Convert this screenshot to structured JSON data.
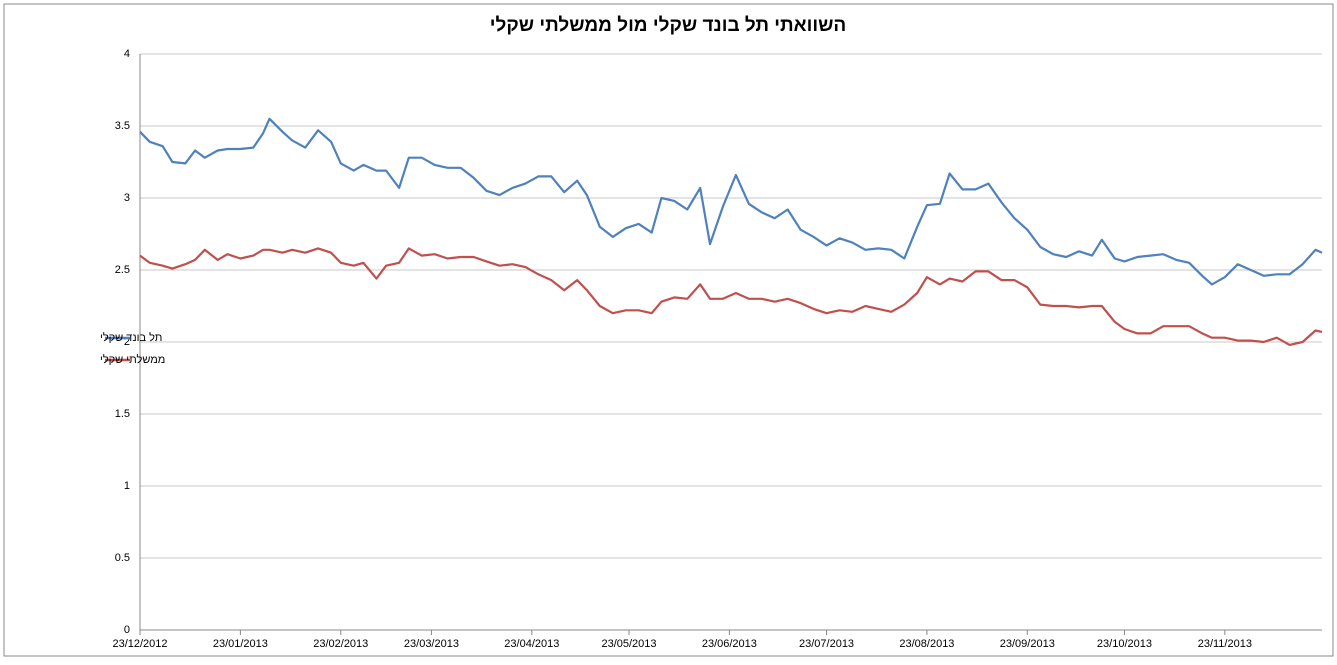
{
  "chart_data": {
    "type": "line",
    "title": "השוואתי תל בונד שקלי מול ממשלתי שקלי",
    "x": [
      "23/12/2012",
      "26/12/2012",
      "30/12/2012",
      "02/01/2013",
      "06/01/2013",
      "09/01/2013",
      "12/01/2013",
      "16/01/2013",
      "19/01/2013",
      "23/01/2013",
      "27/01/2013",
      "30/01/2013",
      "01/02/2013",
      "05/02/2013",
      "08/02/2013",
      "12/02/2013",
      "16/02/2013",
      "20/02/2013",
      "23/02/2013",
      "27/02/2013",
      "02/03/2013",
      "06/03/2013",
      "09/03/2013",
      "13/03/2013",
      "16/03/2013",
      "20/03/2013",
      "24/03/2013",
      "28/03/2013",
      "01/04/2013",
      "05/04/2013",
      "09/04/2013",
      "13/04/2013",
      "17/04/2013",
      "21/04/2013",
      "25/04/2013",
      "29/04/2013",
      "03/05/2013",
      "07/05/2013",
      "10/05/2013",
      "14/05/2013",
      "18/05/2013",
      "22/05/2013",
      "26/05/2013",
      "30/05/2013",
      "02/06/2013",
      "06/06/2013",
      "10/06/2013",
      "14/06/2013",
      "17/06/2013",
      "21/06/2013",
      "25/06/2013",
      "29/06/2013",
      "03/07/2013",
      "07/07/2013",
      "11/07/2013",
      "15/07/2013",
      "19/07/2013",
      "23/07/2013",
      "27/07/2013",
      "31/07/2013",
      "04/08/2013",
      "08/08/2013",
      "12/08/2013",
      "16/08/2013",
      "20/08/2013",
      "23/08/2013",
      "27/08/2013",
      "30/08/2013",
      "03/09/2013",
      "07/09/2013",
      "11/09/2013",
      "15/09/2013",
      "19/09/2013",
      "23/09/2013",
      "27/09/2013",
      "01/10/2013",
      "05/10/2013",
      "09/10/2013",
      "13/10/2013",
      "16/10/2013",
      "20/10/2013",
      "23/10/2013",
      "27/10/2013",
      "31/10/2013",
      "04/11/2013",
      "08/11/2013",
      "12/11/2013",
      "16/11/2013",
      "19/11/2013",
      "23/11/2013",
      "27/11/2013",
      "01/12/2013",
      "05/12/2013",
      "09/12/2013",
      "13/12/2013",
      "17/12/2013",
      "21/12/2013",
      "23/12/2013"
    ],
    "series": [
      {
        "name": "תל בונד שקלי",
        "color": "#4f81bd",
        "values": [
          3.46,
          3.39,
          3.36,
          3.25,
          3.24,
          3.33,
          3.28,
          3.33,
          3.34,
          3.34,
          3.35,
          3.45,
          3.55,
          3.46,
          3.4,
          3.35,
          3.47,
          3.39,
          3.24,
          3.19,
          3.23,
          3.19,
          3.19,
          3.07,
          3.28,
          3.28,
          3.23,
          3.21,
          3.21,
          3.14,
          3.05,
          3.02,
          3.07,
          3.1,
          3.15,
          3.15,
          3.04,
          3.12,
          3.02,
          2.8,
          2.73,
          2.79,
          2.82,
          2.76,
          3.0,
          2.98,
          2.92,
          3.07,
          2.68,
          2.94,
          3.16,
          2.96,
          2.9,
          2.86,
          2.92,
          2.78,
          2.73,
          2.67,
          2.72,
          2.69,
          2.64,
          2.65,
          2.64,
          2.58,
          2.8,
          2.95,
          2.96,
          3.17,
          3.06,
          3.06,
          3.1,
          2.97,
          2.86,
          2.78,
          2.66,
          2.61,
          2.59,
          2.63,
          2.6,
          2.71,
          2.58,
          2.56,
          2.59,
          2.6,
          2.61,
          2.57,
          2.55,
          2.46,
          2.4,
          2.45,
          2.54,
          2.5,
          2.46,
          2.47,
          2.47,
          2.54,
          2.64,
          2.62
        ]
      },
      {
        "name": "ממשלתי שקלי",
        "color": "#c0504d",
        "values": [
          2.6,
          2.55,
          2.53,
          2.51,
          2.54,
          2.57,
          2.64,
          2.57,
          2.61,
          2.58,
          2.6,
          2.64,
          2.64,
          2.62,
          2.64,
          2.62,
          2.65,
          2.62,
          2.55,
          2.53,
          2.55,
          2.44,
          2.53,
          2.55,
          2.65,
          2.6,
          2.61,
          2.58,
          2.59,
          2.59,
          2.56,
          2.53,
          2.54,
          2.52,
          2.47,
          2.43,
          2.36,
          2.43,
          2.36,
          2.25,
          2.2,
          2.22,
          2.22,
          2.2,
          2.28,
          2.31,
          2.3,
          2.4,
          2.3,
          2.3,
          2.34,
          2.3,
          2.3,
          2.28,
          2.3,
          2.27,
          2.23,
          2.2,
          2.22,
          2.21,
          2.25,
          2.23,
          2.21,
          2.26,
          2.34,
          2.45,
          2.4,
          2.44,
          2.42,
          2.49,
          2.49,
          2.43,
          2.43,
          2.38,
          2.26,
          2.25,
          2.25,
          2.24,
          2.25,
          2.25,
          2.14,
          2.09,
          2.06,
          2.06,
          2.11,
          2.11,
          2.11,
          2.06,
          2.03,
          2.03,
          2.01,
          2.01,
          2.0,
          2.03,
          1.98,
          2.0,
          2.08,
          2.07
        ]
      }
    ],
    "xlim": [
      "23/12/2012",
      "23/12/2013"
    ],
    "xticks": [
      "23/12/2012",
      "23/01/2013",
      "23/02/2013",
      "23/03/2013",
      "23/04/2013",
      "23/05/2013",
      "23/06/2013",
      "23/07/2013",
      "23/08/2013",
      "23/09/2013",
      "23/10/2013",
      "23/11/2013"
    ],
    "ylim": [
      0,
      4
    ],
    "yticks": [
      0,
      0.5,
      1,
      1.5,
      2,
      2.5,
      3,
      3.5,
      4
    ],
    "grid": true,
    "legend": "left"
  }
}
